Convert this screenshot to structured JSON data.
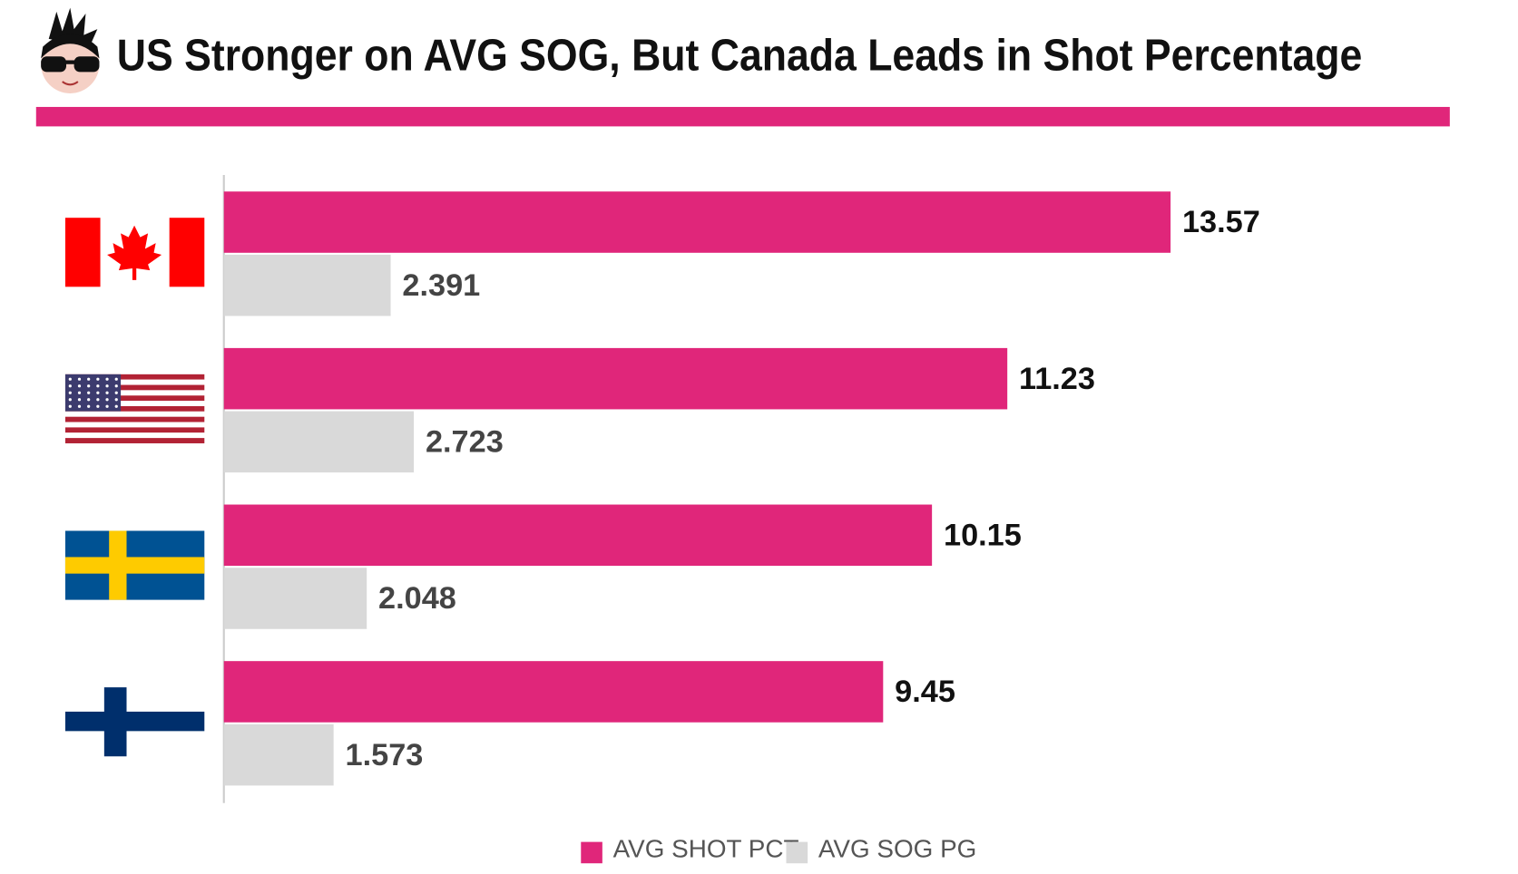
{
  "chart_data": {
    "type": "bar",
    "orientation": "horizontal",
    "title": "US Stronger on AVG SOG, But Canada Leads in Shot Percentage",
    "categories": [
      null,
      null,
      null,
      null
    ],
    "series": [
      {
        "name": "AVG SHOT PCT",
        "color": "#e0267a",
        "values": [
          13.57,
          11.23,
          10.15,
          9.45
        ]
      },
      {
        "name": "AVG SOG PG",
        "color": "#d9d9d9",
        "values": [
          2.391,
          2.723,
          2.048,
          1.573
        ]
      }
    ],
    "legend": "bottom"
  }
}
